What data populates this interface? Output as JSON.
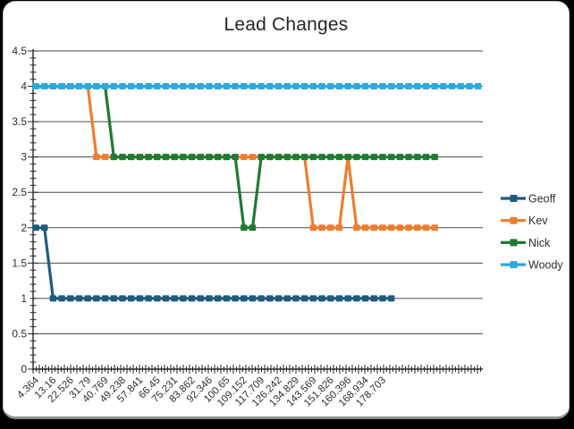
{
  "window": {
    "card_bg": "#ffffff",
    "outer_bg": "#000000"
  },
  "chart_data": {
    "type": "line",
    "title": "Lead Changes",
    "xlabel": "",
    "ylabel": "",
    "ylim": [
      0,
      4.5
    ],
    "ytick_step": 0.5,
    "yticks": [
      4.5,
      4,
      3.5,
      3,
      2.5,
      2,
      1.5,
      1,
      0.5,
      0
    ],
    "grid": true,
    "legend_position": "right",
    "marker": "square",
    "x_tick_labels": [
      "4.364",
      "13.16",
      "22.526",
      "31.79",
      "40.769",
      "49.238",
      "57.841",
      "66.45",
      "75.231",
      "83.862",
      "92.346",
      "100.65",
      "109.152",
      "117.709",
      "126.242",
      "134.829",
      "143.569",
      "151.826",
      "160.396",
      "168.934",
      "178.703"
    ],
    "x_labels_point_stride": 2,
    "series": [
      {
        "name": "Geoff",
        "color": "#1F5B7C",
        "values": [
          2,
          2,
          1,
          1,
          1,
          1,
          1,
          1,
          1,
          1,
          1,
          1,
          1,
          1,
          1,
          1,
          1,
          1,
          1,
          1,
          1,
          1,
          1,
          1,
          1,
          1,
          1,
          1,
          1,
          1,
          1,
          1,
          1,
          1,
          1,
          1,
          1,
          1,
          1,
          1,
          1,
          1,
          null,
          null,
          null,
          null,
          null,
          null,
          null,
          null,
          null,
          null
        ]
      },
      {
        "name": "Kev",
        "color": "#ED7D31",
        "values": [
          4,
          4,
          4,
          4,
          4,
          4,
          4,
          3,
          3,
          3,
          3,
          3,
          3,
          3,
          3,
          3,
          3,
          3,
          3,
          3,
          3,
          3,
          3,
          3,
          3,
          3,
          3,
          3,
          3,
          3,
          3,
          3,
          2,
          2,
          2,
          2,
          3,
          2,
          2,
          2,
          2,
          2,
          2,
          2,
          2,
          2,
          2,
          null,
          null,
          null,
          null,
          null
        ]
      },
      {
        "name": "Nick",
        "color": "#1F7A33",
        "values": [
          4,
          4,
          4,
          4,
          4,
          4,
          4,
          4,
          4,
          3,
          3,
          3,
          3,
          3,
          3,
          3,
          3,
          3,
          3,
          3,
          3,
          3,
          3,
          3,
          2,
          2,
          3,
          3,
          3,
          3,
          3,
          3,
          3,
          3,
          3,
          3,
          3,
          3,
          3,
          3,
          3,
          3,
          3,
          3,
          3,
          3,
          3,
          null,
          null,
          null,
          null,
          null
        ]
      },
      {
        "name": "Woody",
        "color": "#29A9DC",
        "values": [
          4,
          4,
          4,
          4,
          4,
          4,
          4,
          4,
          4,
          4,
          4,
          4,
          4,
          4,
          4,
          4,
          4,
          4,
          4,
          4,
          4,
          4,
          4,
          4,
          4,
          4,
          4,
          4,
          4,
          4,
          4,
          4,
          4,
          4,
          4,
          4,
          4,
          4,
          4,
          4,
          4,
          4,
          4,
          4,
          4,
          4,
          4,
          4,
          4,
          4,
          4,
          4
        ]
      }
    ]
  }
}
